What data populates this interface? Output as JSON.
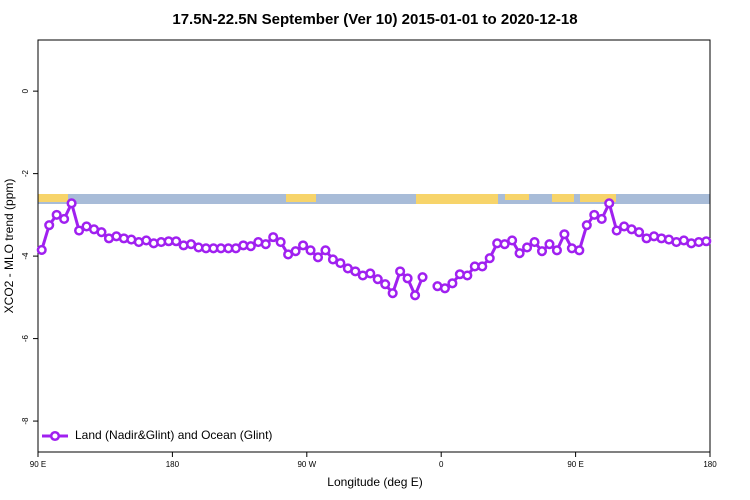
{
  "chart_data": {
    "type": "line",
    "title": "17.5N-22.5N September (Ver 10)   2015-01-01 to 2020-12-18",
    "x_label": "Longitude (deg E)",
    "y_label": "XCO2 - MLO trend (ppm)",
    "xlim": [
      -270,
      180
    ],
    "ylim": [
      -8.75,
      1.24
    ],
    "xticks": [
      {
        "value": -270,
        "label": "90 E"
      },
      {
        "value": -180,
        "label": "180"
      },
      {
        "value": -90,
        "label": "90 W"
      },
      0,
      {
        "value": 90,
        "label": "90 E"
      },
      {
        "value": 180,
        "label": "180"
      }
    ],
    "yticks": [
      0,
      -2,
      -4,
      -6,
      -8
    ],
    "legend": "bottom-left",
    "x": [
      -267.5,
      -262.5,
      -257.5,
      -252.5,
      -247.5,
      -242.5,
      -237.5,
      -232.5,
      -227.5,
      -222.5,
      -217.5,
      -212.5,
      -207.5,
      -202.5,
      -197.5,
      -192.5,
      -187.5,
      -182.5,
      -177.5,
      -172.5,
      -167.5,
      -162.5,
      -157.5,
      -152.5,
      -147.5,
      -142.5,
      -137.5,
      -132.5,
      -127.5,
      -122.5,
      -117.5,
      -112.5,
      -107.5,
      -102.5,
      -97.5,
      -92.5,
      -87.5,
      -82.5,
      -77.5,
      -72.5,
      -67.5,
      -62.5,
      -57.5,
      -52.5,
      -47.5,
      -42.5,
      -37.5,
      -32.5,
      -27.5,
      -22.5,
      -17.5,
      -12.5,
      -7.5,
      -2.5,
      2.5,
      7.5,
      12.5,
      17.5,
      22.5,
      27.5,
      32.5,
      37.5,
      42.5,
      47.5,
      52.5,
      57.5,
      62.5,
      67.5,
      72.5,
      77.5,
      82.5,
      87.5,
      92.5,
      97.5,
      102.5,
      107.5,
      112.5,
      117.5,
      122.5,
      127.5,
      132.5,
      137.5,
      142.5,
      147.5,
      152.5,
      157.5,
      162.5,
      167.5,
      172.5,
      177.5
    ],
    "series": [
      {
        "name": "Land (Nadir&Glint) and Ocean (Glint)",
        "color": "#a020f0",
        "values": [
          -3.85,
          -3.25,
          -3.0,
          -3.1,
          -2.72,
          -3.38,
          -3.28,
          -3.35,
          -3.42,
          -3.57,
          -3.52,
          -3.57,
          -3.6,
          -3.66,
          -3.62,
          -3.69,
          -3.66,
          -3.64,
          -3.64,
          -3.74,
          -3.71,
          -3.79,
          -3.81,
          -3.81,
          -3.81,
          -3.81,
          -3.81,
          -3.74,
          -3.76,
          -3.66,
          -3.71,
          -3.54,
          -3.66,
          -3.96,
          -3.88,
          -3.74,
          -3.86,
          -4.03,
          -3.86,
          -4.08,
          -4.17,
          -4.3,
          -4.37,
          -4.47,
          -4.42,
          -4.56,
          -4.68,
          -4.9,
          -4.37,
          -4.54,
          -4.95,
          -4.51,
          null,
          -4.73,
          -4.78,
          -4.66,
          -4.44,
          -4.47,
          -4.25,
          -4.25,
          -4.05,
          -3.69,
          -3.71,
          -3.62,
          -3.93,
          -3.79,
          -3.66,
          -3.88,
          -3.71,
          -3.86,
          -3.47,
          -3.81,
          -3.86,
          -3.25,
          -3.0,
          -3.1,
          -2.72,
          -3.38,
          -3.28,
          -3.35,
          -3.42,
          -3.57,
          -3.52,
          -3.57,
          -3.6,
          -3.66,
          -3.62,
          -3.69,
          -3.66,
          -3.64
        ]
      }
    ]
  }
}
